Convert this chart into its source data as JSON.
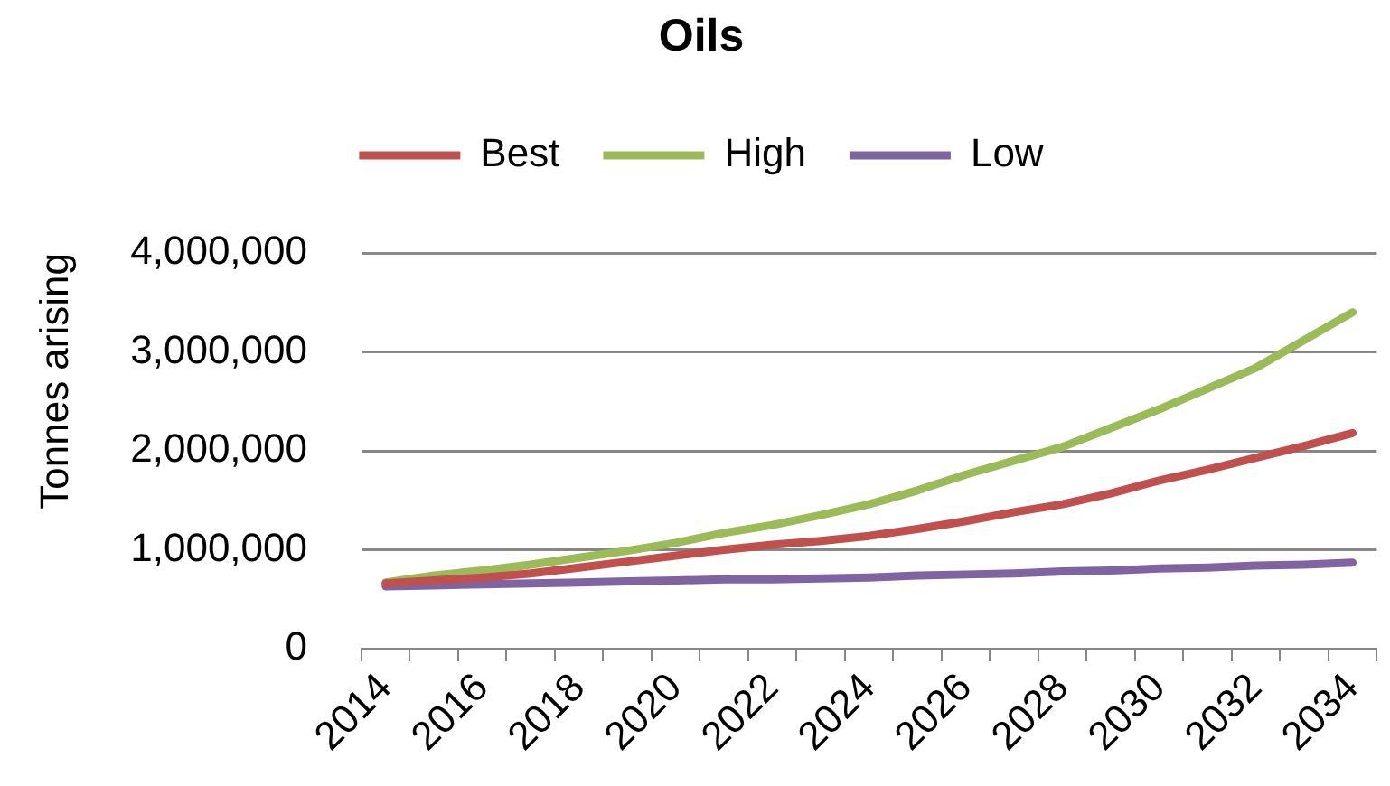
{
  "chart_data": {
    "type": "line",
    "title": "Oils",
    "ylabel": "Tonnes arising",
    "categories": [
      "2014",
      null,
      "2016",
      null,
      "2018",
      null,
      "2020",
      null,
      "2022",
      null,
      "2024",
      null,
      "2026",
      null,
      "2028",
      null,
      "2030",
      null,
      "2032",
      null,
      "2034"
    ],
    "series": [
      {
        "name": "Best",
        "color": "#c0504d",
        "values": [
          660000,
          690000,
          720000,
          760000,
          820000,
          880000,
          940000,
          1000000,
          1050000,
          1090000,
          1140000,
          1210000,
          1290000,
          1380000,
          1460000,
          1570000,
          1700000,
          1810000,
          1930000,
          2050000,
          2180000
        ]
      },
      {
        "name": "High",
        "color": "#9bbb59",
        "values": [
          670000,
          740000,
          790000,
          850000,
          920000,
          990000,
          1070000,
          1170000,
          1250000,
          1350000,
          1460000,
          1600000,
          1760000,
          1900000,
          2040000,
          2230000,
          2420000,
          2630000,
          2840000,
          3120000,
          3400000
        ]
      },
      {
        "name": "Low",
        "color": "#8064a2",
        "values": [
          630000,
          640000,
          650000,
          660000,
          670000,
          680000,
          690000,
          700000,
          700000,
          710000,
          720000,
          740000,
          750000,
          760000,
          780000,
          790000,
          810000,
          820000,
          840000,
          850000,
          870000
        ]
      }
    ],
    "ylim": [
      0,
      4000000
    ],
    "yticks": [
      0,
      {
        "value": 1000000,
        "label": "1,000,000"
      },
      {
        "value": 2000000,
        "label": "2,000,000"
      },
      {
        "value": 3000000,
        "label": "3,000,000"
      },
      {
        "value": 4000000,
        "label": "4,000,000"
      }
    ],
    "grid": "y",
    "legend": "top"
  }
}
